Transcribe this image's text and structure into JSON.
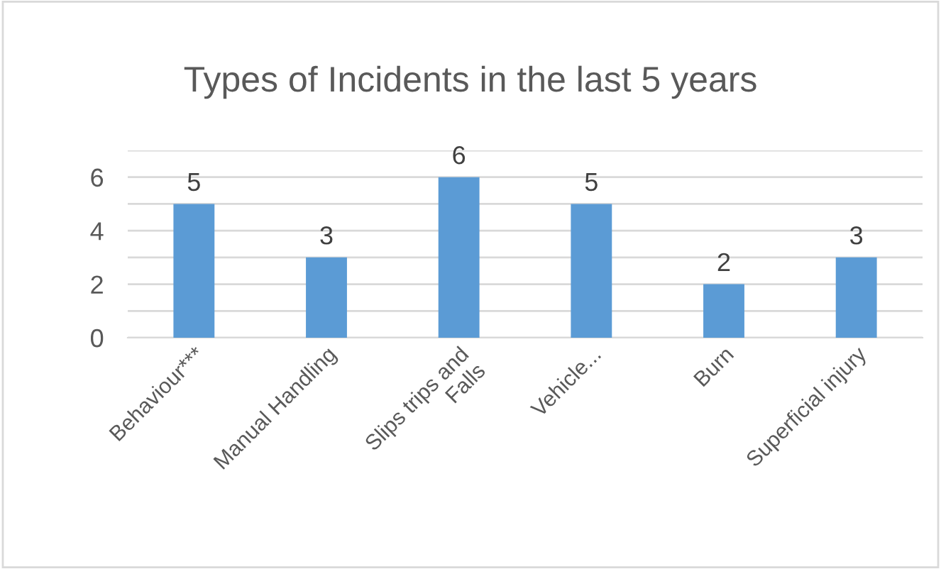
{
  "chart_data": {
    "type": "bar",
    "title": "Types of Incidents in the last 5 years",
    "categories": [
      "Behaviour***",
      "Manual Handling",
      "Slips trips and\nFalls",
      "Vehicle...",
      "Burn",
      "Superficial injury"
    ],
    "values": [
      5,
      3,
      6,
      5,
      2,
      3
    ],
    "color": "#5b9bd5",
    "data_labels": true,
    "ylim": [
      0,
      7
    ],
    "yticks": [
      0,
      {
        "value": 1,
        "label": null
      },
      2,
      {
        "value": 3,
        "label": null
      },
      4,
      {
        "value": 5,
        "label": null
      },
      6,
      {
        "value": 7,
        "label": null
      }
    ],
    "grid": "y"
  }
}
